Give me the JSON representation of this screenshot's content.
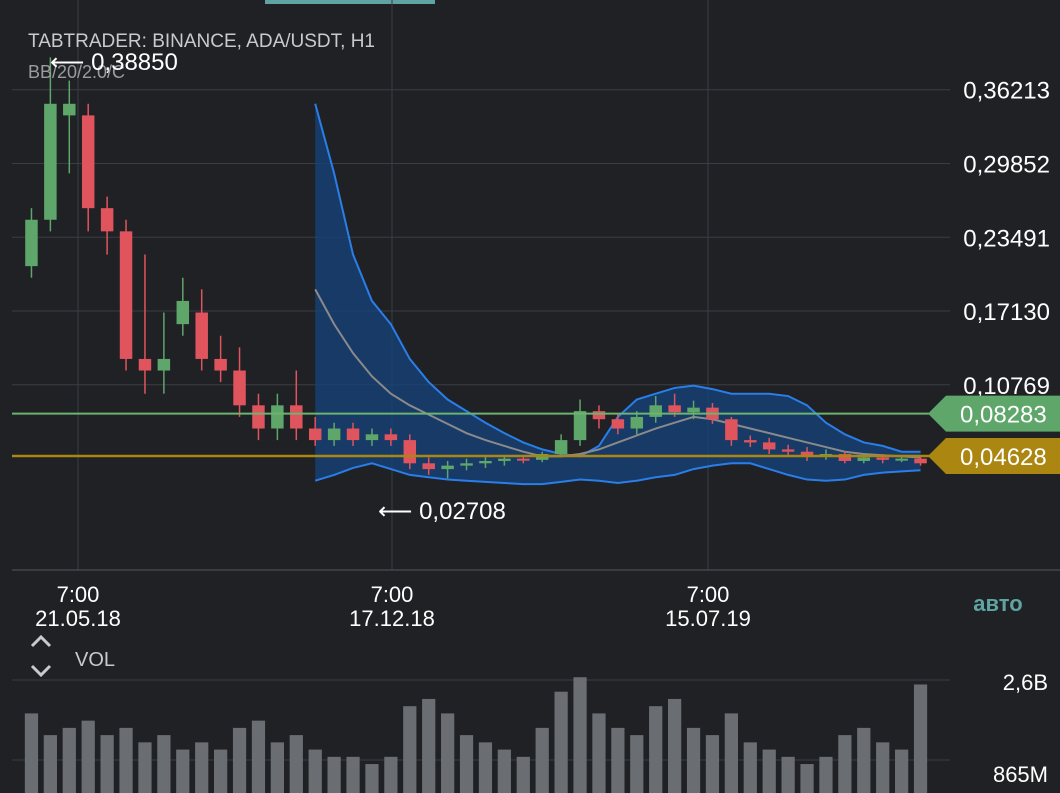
{
  "header": {
    "title": "TABTRADER: BINANCE, ADA/USDT, H1",
    "indicator": "BB/20/2.0/C",
    "high_marker": "⟵ 0,38850",
    "low_marker": "⟵ 0,02708"
  },
  "price_axis": {
    "labels": [
      "0,36213",
      "0,29852",
      "0,23491",
      "0,17130",
      "0,10769"
    ]
  },
  "time_axis": [
    {
      "time": "7:00",
      "date": "21.05.18"
    },
    {
      "time": "7:00",
      "date": "17.12.18"
    },
    {
      "time": "7:00",
      "date": "15.07.19"
    }
  ],
  "auto_button": "авто",
  "volume_panel": {
    "label": "VOL",
    "labels": [
      "2,6B",
      "865M"
    ]
  },
  "price_tags": [
    {
      "value": "0,08283",
      "color": "#5fa66a"
    },
    {
      "value": "0,04628",
      "color": "#ab8712"
    }
  ],
  "colors": {
    "background": "#1f2125",
    "grid": "#3a3d42",
    "up": "#5fa66a",
    "down": "#e0545e",
    "band": "#2a7ee8",
    "band_fill": "#16437d",
    "middle_band": "#8a8a8a",
    "green_line": "#6cb36f",
    "gold_line": "#ab8712",
    "volume": "#6a6d72",
    "auto": "#5fa3a3"
  },
  "chart_data": {
    "type": "candlestick",
    "title": "TABTRADER: BINANCE, ADA/USDT, H1",
    "indicator": "Bollinger Bands 20 / 2.0 / close",
    "y_ticks": [
      0.36213,
      0.29852,
      0.23491,
      0.1713,
      0.10769
    ],
    "y_range": [
      -0.052,
      0.405
    ],
    "x_ticks": [
      "21.05.18",
      "17.12.18",
      "15.07.19"
    ],
    "horizontal_lines": [
      0.08283,
      0.04628
    ],
    "markers": {
      "high": 0.3885,
      "low": 0.02708
    },
    "candles": [
      [
        0.21,
        0.25,
        0.2,
        0.26,
        1.1
      ],
      [
        0.25,
        0.35,
        0.24,
        0.39,
        0.8
      ],
      [
        0.34,
        0.35,
        0.29,
        0.37,
        0.9
      ],
      [
        0.34,
        0.26,
        0.24,
        0.35,
        1.0
      ],
      [
        0.26,
        0.24,
        0.22,
        0.27,
        0.8
      ],
      [
        0.24,
        0.13,
        0.12,
        0.25,
        0.9
      ],
      [
        0.13,
        0.12,
        0.1,
        0.22,
        0.7
      ],
      [
        0.12,
        0.13,
        0.1,
        0.17,
        0.8
      ],
      [
        0.16,
        0.18,
        0.15,
        0.2,
        0.6
      ],
      [
        0.17,
        0.13,
        0.12,
        0.19,
        0.7
      ],
      [
        0.13,
        0.12,
        0.11,
        0.15,
        0.6
      ],
      [
        0.12,
        0.09,
        0.08,
        0.14,
        0.9
      ],
      [
        0.09,
        0.07,
        0.06,
        0.1,
        1.0
      ],
      [
        0.07,
        0.09,
        0.06,
        0.1,
        0.7
      ],
      [
        0.09,
        0.07,
        0.06,
        0.12,
        0.8
      ],
      [
        0.07,
        0.06,
        0.055,
        0.08,
        0.6
      ],
      [
        0.06,
        0.07,
        0.055,
        0.075,
        0.5
      ],
      [
        0.07,
        0.06,
        0.055,
        0.075,
        0.5
      ],
      [
        0.06,
        0.065,
        0.055,
        0.07,
        0.4
      ],
      [
        0.065,
        0.06,
        0.055,
        0.07,
        0.5
      ],
      [
        0.06,
        0.04,
        0.035,
        0.065,
        1.2
      ],
      [
        0.04,
        0.035,
        0.03,
        0.045,
        1.3
      ],
      [
        0.035,
        0.038,
        0.027,
        0.042,
        1.1
      ],
      [
        0.038,
        0.04,
        0.034,
        0.044,
        0.8
      ],
      [
        0.04,
        0.042,
        0.036,
        0.046,
        0.7
      ],
      [
        0.042,
        0.044,
        0.038,
        0.046,
        0.6
      ],
      [
        0.044,
        0.043,
        0.04,
        0.047,
        0.5
      ],
      [
        0.043,
        0.048,
        0.041,
        0.05,
        0.9
      ],
      [
        0.048,
        0.06,
        0.045,
        0.065,
        1.4
      ],
      [
        0.06,
        0.085,
        0.055,
        0.095,
        1.6
      ],
      [
        0.085,
        0.078,
        0.07,
        0.09,
        1.1
      ],
      [
        0.078,
        0.07,
        0.065,
        0.082,
        0.9
      ],
      [
        0.07,
        0.08,
        0.065,
        0.085,
        0.8
      ],
      [
        0.08,
        0.09,
        0.075,
        0.098,
        1.2
      ],
      [
        0.09,
        0.084,
        0.08,
        0.1,
        1.3
      ],
      [
        0.084,
        0.088,
        0.078,
        0.094,
        0.9
      ],
      [
        0.088,
        0.078,
        0.074,
        0.092,
        0.8
      ],
      [
        0.078,
        0.06,
        0.055,
        0.08,
        1.1
      ],
      [
        0.06,
        0.058,
        0.054,
        0.064,
        0.7
      ],
      [
        0.058,
        0.052,
        0.048,
        0.062,
        0.6
      ],
      [
        0.052,
        0.05,
        0.046,
        0.056,
        0.5
      ],
      [
        0.05,
        0.046,
        0.042,
        0.054,
        0.4
      ],
      [
        0.046,
        0.048,
        0.043,
        0.052,
        0.5
      ],
      [
        0.048,
        0.042,
        0.04,
        0.05,
        0.8
      ],
      [
        0.042,
        0.045,
        0.04,
        0.048,
        0.9
      ],
      [
        0.045,
        0.043,
        0.04,
        0.048,
        0.7
      ],
      [
        0.043,
        0.044,
        0.041,
        0.047,
        0.6
      ],
      [
        0.044,
        0.04,
        0.038,
        0.046,
        1.5
      ]
    ],
    "bollinger_bands": {
      "start_index": 15,
      "upper": [
        0.35,
        0.29,
        0.22,
        0.18,
        0.16,
        0.13,
        0.11,
        0.095,
        0.085,
        0.075,
        0.066,
        0.058,
        0.052,
        0.048,
        0.046,
        0.055,
        0.08,
        0.095,
        0.1,
        0.105,
        0.107,
        0.104,
        0.1,
        0.1,
        0.1,
        0.098,
        0.09,
        0.075,
        0.065,
        0.058,
        0.055,
        0.05,
        0.05
      ],
      "middle": [
        0.19,
        0.16,
        0.135,
        0.115,
        0.1,
        0.09,
        0.082,
        0.074,
        0.066,
        0.06,
        0.055,
        0.05,
        0.046,
        0.046,
        0.048,
        0.052,
        0.058,
        0.064,
        0.07,
        0.075,
        0.08,
        0.078,
        0.074,
        0.07,
        0.066,
        0.062,
        0.058,
        0.054,
        0.05,
        0.048,
        0.047,
        0.046,
        0.045
      ],
      "lower": [
        0.025,
        0.03,
        0.036,
        0.04,
        0.035,
        0.03,
        0.028,
        0.026,
        0.025,
        0.024,
        0.023,
        0.022,
        0.022,
        0.024,
        0.026,
        0.025,
        0.023,
        0.025,
        0.028,
        0.03,
        0.035,
        0.038,
        0.04,
        0.04,
        0.035,
        0.03,
        0.026,
        0.025,
        0.026,
        0.03,
        0.032,
        0.033,
        0.034
      ]
    }
  }
}
